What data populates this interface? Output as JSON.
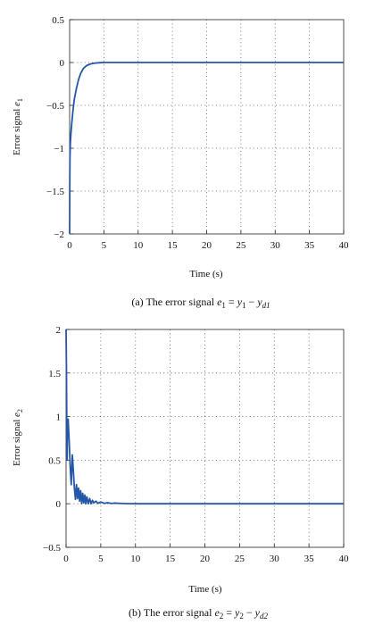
{
  "chart_data": [
    {
      "type": "line",
      "panel": "a",
      "ylabel": "Error signal e₁",
      "ylabel_main": "Error signal ",
      "ylabel_var": "e",
      "ylabel_sub": "1",
      "xlabel": "Time (s)",
      "caption_prefix": "(a) The error signal ",
      "caption_math": "e₁ = y₁ − y_d1",
      "caption_math_parts": [
        "e",
        "1",
        " = ",
        "y",
        "1",
        " − ",
        "y",
        "d1"
      ],
      "xlim": [
        0,
        40
      ],
      "ylim": [
        -2,
        0.5
      ],
      "xticks": [
        0,
        5,
        10,
        15,
        20,
        25,
        30,
        35,
        40
      ],
      "yticks": [
        -2,
        -1.5,
        -1,
        -0.5,
        0,
        0.5
      ],
      "ytick_labels": [
        "−2",
        "−1.5",
        "−1",
        "−0.5",
        "0",
        "0.5"
      ],
      "grid": true,
      "color": "#2457a8",
      "series": [
        {
          "x": [
            0,
            0.02,
            0.05,
            0.1,
            0.2,
            0.3,
            0.5,
            0.7,
            1.0,
            1.3,
            1.6,
            2.0,
            2.5,
            3.0,
            3.5,
            4.0,
            4.5,
            5.0,
            6.0,
            8.0,
            10,
            15,
            20,
            25,
            30,
            35,
            40
          ],
          "y": [
            -2.0,
            -1.45,
            -1.1,
            -0.95,
            -0.82,
            -0.72,
            -0.55,
            -0.42,
            -0.3,
            -0.2,
            -0.13,
            -0.07,
            -0.035,
            -0.018,
            -0.009,
            -0.005,
            -0.002,
            0,
            0,
            0,
            0,
            0,
            0,
            0,
            0,
            0,
            0
          ]
        }
      ]
    },
    {
      "type": "line",
      "panel": "b",
      "ylabel": "Error signal e₂",
      "ylabel_main": "Error signal ",
      "ylabel_var": "e",
      "ylabel_sub": "2",
      "xlabel": "Time (s)",
      "caption_prefix": "(b) The error signal ",
      "caption_math": "e₂ = y₂ − y_d2",
      "caption_math_parts": [
        "e",
        "2",
        " = ",
        "y",
        "2",
        " − ",
        "y",
        "d2"
      ],
      "xlim": [
        0,
        40
      ],
      "ylim": [
        -0.5,
        2
      ],
      "xticks": [
        0,
        5,
        10,
        15,
        20,
        25,
        30,
        35,
        40
      ],
      "yticks": [
        -0.5,
        0,
        0.5,
        1,
        1.5,
        2
      ],
      "ytick_labels": [
        "−0.5",
        "0",
        "0.5",
        "1",
        "1.5",
        "2"
      ],
      "grid": true,
      "color": "#2457a8",
      "series": [
        {
          "x": [
            0,
            0.05,
            0.1,
            0.15,
            0.2,
            0.3,
            0.45,
            0.6,
            0.75,
            0.9,
            1.05,
            1.2,
            1.35,
            1.5,
            1.65,
            1.8,
            1.95,
            2.1,
            2.25,
            2.4,
            2.55,
            2.7,
            2.85,
            3.0,
            3.2,
            3.4,
            3.6,
            3.8,
            4.0,
            4.3,
            4.6,
            5.0,
            5.5,
            6.0,
            6.5,
            7.0,
            8.0,
            9.0,
            10,
            15,
            20,
            25,
            30,
            35,
            40
          ],
          "y": [
            2.0,
            1.6,
            0.95,
            0.5,
            0.8,
            0.97,
            0.72,
            0.42,
            0.22,
            0.56,
            0.38,
            0.18,
            0.05,
            0.22,
            0.06,
            0.18,
            0.03,
            0.15,
            0.0,
            0.12,
            0.01,
            0.1,
            0.0,
            0.08,
            0.0,
            0.06,
            0.0,
            0.04,
            0.01,
            0.03,
            0.005,
            0.02,
            0.005,
            0.012,
            0.003,
            0.008,
            0.003,
            0.001,
            0,
            0,
            0,
            0,
            0,
            0,
            0
          ]
        }
      ]
    }
  ]
}
